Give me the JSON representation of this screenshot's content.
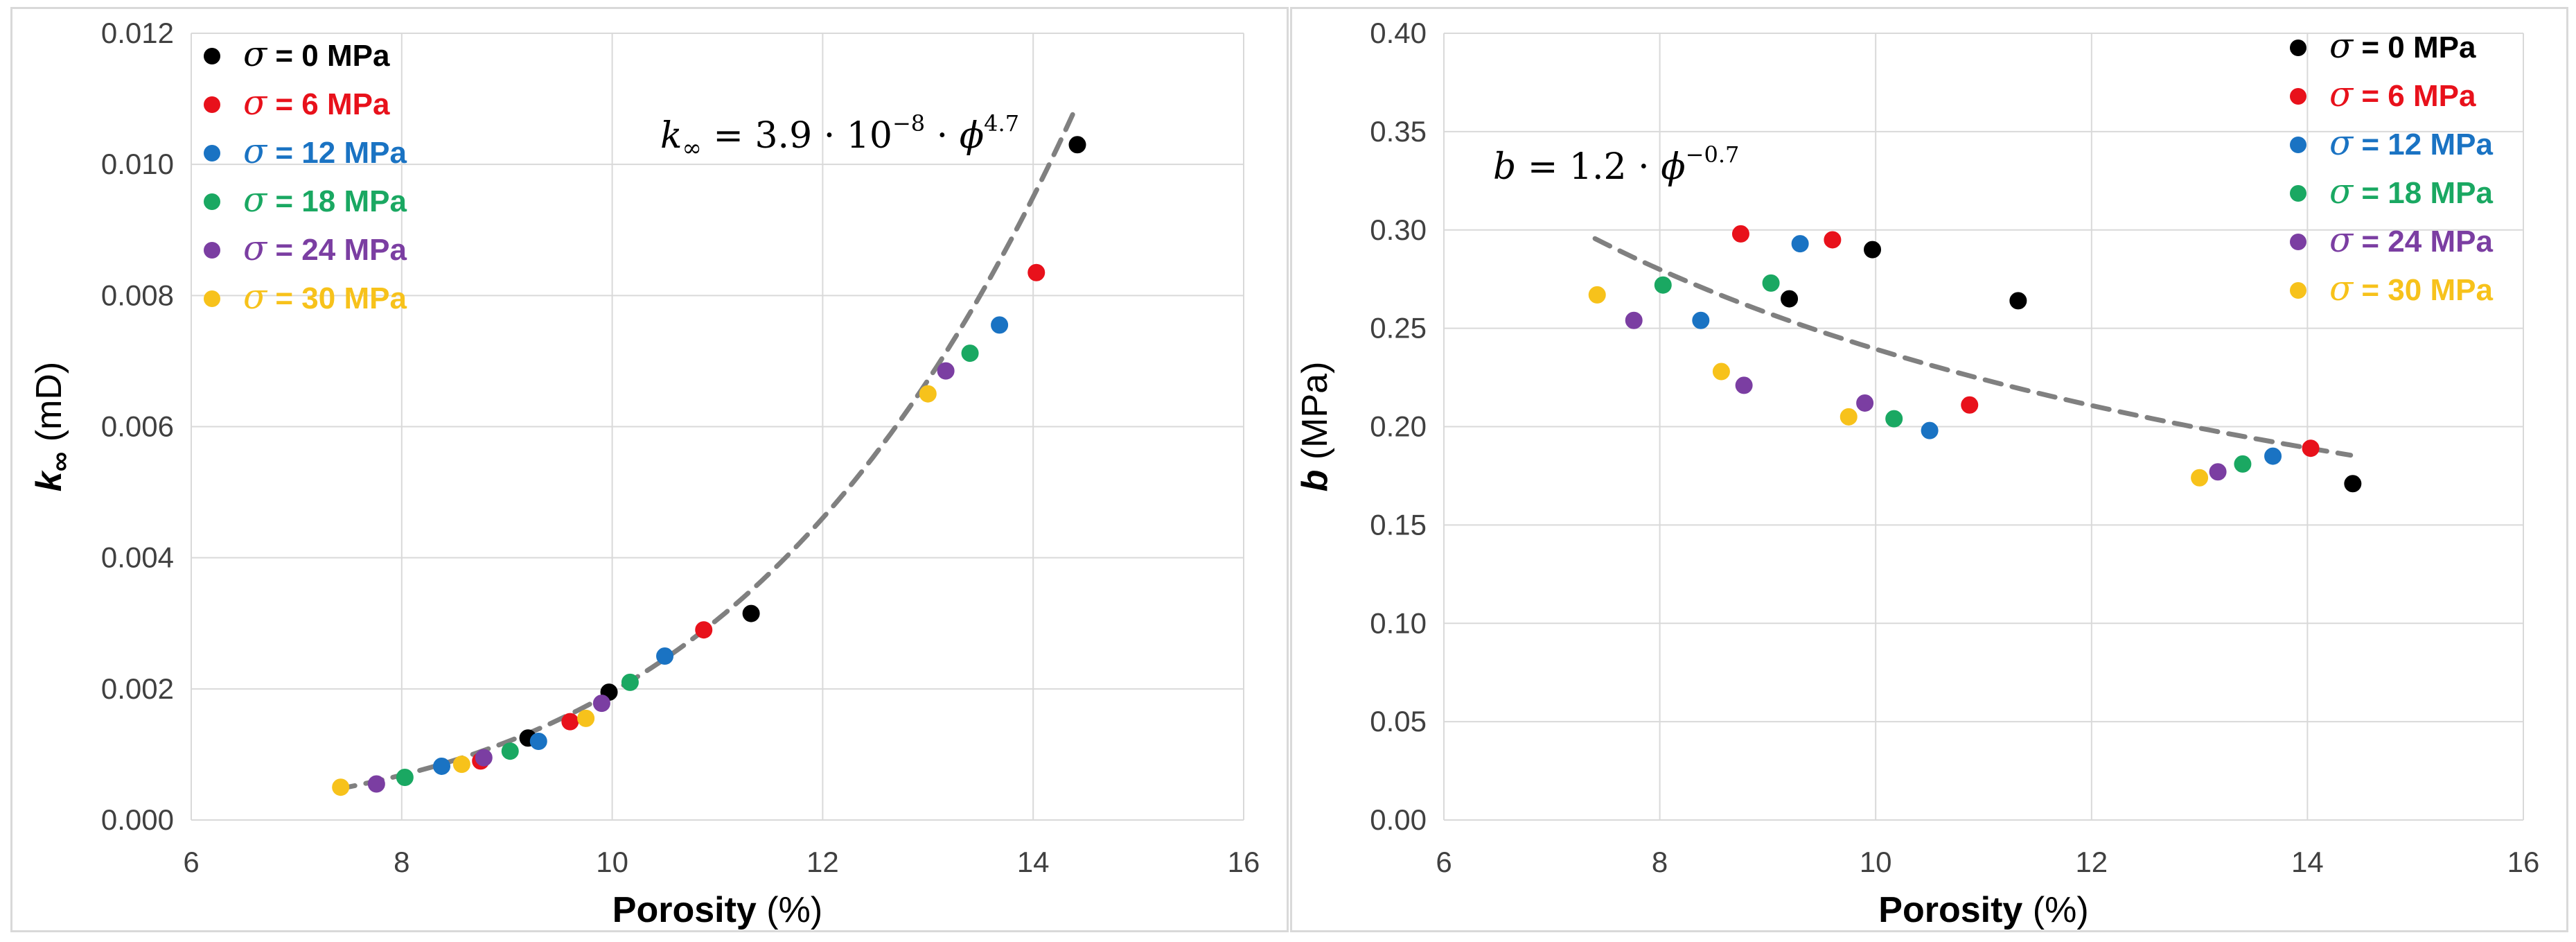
{
  "colors": {
    "sigma_0": "#000000",
    "sigma_6": "#e8111b",
    "sigma_12": "#1a73c3",
    "sigma_18": "#1aa862",
    "sigma_24": "#7b3ea2",
    "sigma_30": "#f7c21b",
    "fit_line": "#808080",
    "grid": "#d9d9d9"
  },
  "chart_data": [
    {
      "type": "scatter",
      "id": "left",
      "xlabel_bold": "Porosity",
      "xlabel_rest": " (%)",
      "ylabel_symbol": "k",
      "ylabel_sub": "∞",
      "ylabel_unit": " (mD)",
      "xlim": [
        6,
        16
      ],
      "ylim": [
        0,
        0.012
      ],
      "xticks": [
        6,
        8,
        10,
        12,
        14,
        16
      ],
      "yticks": [
        0.0,
        0.002,
        0.004,
        0.006,
        0.008,
        0.01,
        0.012
      ],
      "xtick_labels": [
        "6",
        "8",
        "10",
        "12",
        "14",
        "16"
      ],
      "ytick_labels": [
        "0.000",
        "0.002",
        "0.004",
        "0.006",
        "0.008",
        "0.010",
        "0.012"
      ],
      "legend_position": "top-left",
      "equation": {
        "lhs": "k",
        "lhs_sub": "∞",
        "mid": " = 3.9 · 10",
        "exp1": "−8",
        "tail": " · ",
        "phi": "ϕ",
        "exp2": "4.7"
      },
      "fit": {
        "a": 3.9e-08,
        "n": 4.7,
        "x_from": 7.4,
        "x_to": 14.4
      },
      "series": [
        {
          "name": "σ = 0 MPa",
          "sigma": "σ",
          "label": " = 0 MPa",
          "color_key": "sigma_0",
          "points": [
            [
              9.2,
              0.00125
            ],
            [
              9.97,
              0.00195
            ],
            [
              11.32,
              0.00315
            ],
            [
              14.42,
              0.0103
            ]
          ]
        },
        {
          "name": "σ = 6 MPa",
          "sigma": "σ",
          "label": " = 6 MPa",
          "color_key": "sigma_6",
          "points": [
            [
              8.75,
              0.0009
            ],
            [
              9.6,
              0.0015
            ],
            [
              10.87,
              0.0029
            ],
            [
              14.03,
              0.00835
            ]
          ]
        },
        {
          "name": "σ = 12 MPa",
          "sigma": "σ",
          "label": " = 12 MPa",
          "color_key": "sigma_12",
          "points": [
            [
              8.38,
              0.00082
            ],
            [
              9.3,
              0.0012
            ],
            [
              10.5,
              0.0025
            ],
            [
              13.68,
              0.00755
            ]
          ]
        },
        {
          "name": "σ = 18 MPa",
          "sigma": "σ",
          "label": " = 18 MPa",
          "color_key": "sigma_18",
          "points": [
            [
              8.03,
              0.00065
            ],
            [
              9.03,
              0.00105
            ],
            [
              10.17,
              0.0021
            ],
            [
              13.4,
              0.00712
            ]
          ]
        },
        {
          "name": "σ = 24 MPa",
          "sigma": "σ",
          "label": " = 24 MPa",
          "color_key": "sigma_24",
          "points": [
            [
              7.76,
              0.00055
            ],
            [
              8.78,
              0.00095
            ],
            [
              9.9,
              0.00178
            ],
            [
              13.17,
              0.00685
            ]
          ]
        },
        {
          "name": "σ = 30 MPa",
          "sigma": "σ",
          "label": " = 30 MPa",
          "color_key": "sigma_30",
          "points": [
            [
              7.42,
              0.0005
            ],
            [
              8.57,
              0.00085
            ],
            [
              9.75,
              0.00155
            ],
            [
              13.0,
              0.0065
            ]
          ]
        }
      ]
    },
    {
      "type": "scatter",
      "id": "right",
      "xlabel_bold": "Porosity",
      "xlabel_rest": " (%)",
      "ylabel_symbol": "b",
      "ylabel_sub": "",
      "ylabel_unit": " (MPa)",
      "xlim": [
        6,
        16
      ],
      "ylim": [
        0,
        0.4
      ],
      "xticks": [
        6,
        8,
        10,
        12,
        14,
        16
      ],
      "yticks": [
        0.0,
        0.05,
        0.1,
        0.15,
        0.2,
        0.25,
        0.3,
        0.35,
        0.4
      ],
      "xtick_labels": [
        "6",
        "8",
        "10",
        "12",
        "14",
        "16"
      ],
      "ytick_labels": [
        "0.00",
        "0.05",
        "0.10",
        "0.15",
        "0.20",
        "0.25",
        "0.30",
        "0.35",
        "0.40"
      ],
      "legend_position": "top-right",
      "equation": {
        "lhs": "b",
        "mid": " = 1.2 · ",
        "phi": "ϕ",
        "exp": "−0.7"
      },
      "fit": {
        "a": 1.2,
        "n": -0.7,
        "x_from": 7.4,
        "x_to": 14.4
      },
      "series": [
        {
          "name": "σ = 0 MPa",
          "sigma": "σ",
          "label": " = 0 MPa",
          "color_key": "sigma_0",
          "points": [
            [
              9.2,
              0.265
            ],
            [
              9.97,
              0.29
            ],
            [
              11.32,
              0.264
            ],
            [
              14.42,
              0.171
            ]
          ]
        },
        {
          "name": "σ = 6 MPa",
          "sigma": "σ",
          "label": " = 6 MPa",
          "color_key": "sigma_6",
          "points": [
            [
              8.75,
              0.298
            ],
            [
              9.6,
              0.295
            ],
            [
              10.87,
              0.211
            ],
            [
              14.03,
              0.189
            ]
          ]
        },
        {
          "name": "σ = 12 MPa",
          "sigma": "σ",
          "label": " = 12 MPa",
          "color_key": "sigma_12",
          "points": [
            [
              8.38,
              0.254
            ],
            [
              9.3,
              0.293
            ],
            [
              10.5,
              0.198
            ],
            [
              13.68,
              0.185
            ]
          ]
        },
        {
          "name": "σ = 18 MPa",
          "sigma": "σ",
          "label": " = 18 MPa",
          "color_key": "sigma_18",
          "points": [
            [
              8.03,
              0.272
            ],
            [
              9.03,
              0.273
            ],
            [
              10.17,
              0.204
            ],
            [
              13.4,
              0.181
            ]
          ]
        },
        {
          "name": "σ = 24 MPa",
          "sigma": "σ",
          "label": " = 24 MPa",
          "color_key": "sigma_24",
          "points": [
            [
              7.76,
              0.254
            ],
            [
              8.78,
              0.221
            ],
            [
              9.9,
              0.212
            ],
            [
              13.17,
              0.177
            ]
          ]
        },
        {
          "name": "σ = 30 MPa",
          "sigma": "σ",
          "label": " = 30 MPa",
          "color_key": "sigma_30",
          "points": [
            [
              7.42,
              0.267
            ],
            [
              8.57,
              0.228
            ],
            [
              9.75,
              0.205
            ],
            [
              13.0,
              0.174
            ]
          ]
        }
      ]
    }
  ]
}
